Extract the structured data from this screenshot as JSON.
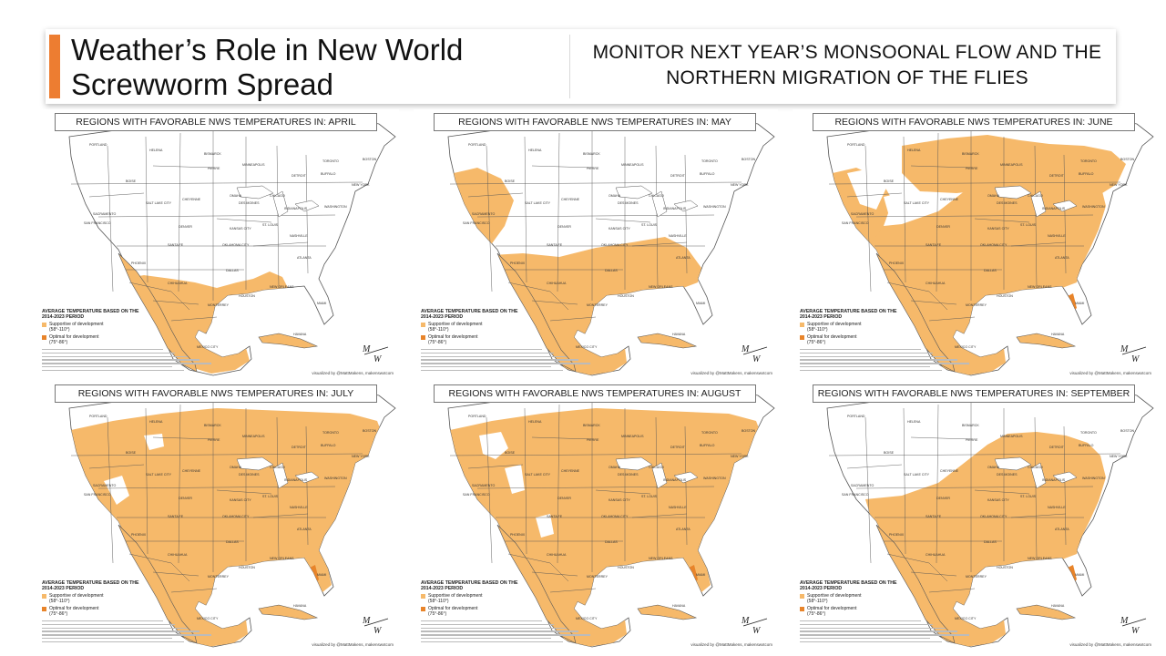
{
  "header": {
    "title": "Weather’s Role in New World Screwworm Spread",
    "subtitle": "MONITOR NEXT YEAR’S MONSOONAL FLOW AND THE NORTHERN MIGRATION OF THE FLIES",
    "accent_color": "#ed7d31"
  },
  "colors": {
    "supportive": "#f6b96a",
    "optimal": "#e8842a",
    "land": "#ffffff",
    "border": "#555555",
    "water": "#ffffff"
  },
  "legend": {
    "title": "AVERAGE TEMPERATURE BASED ON THE 2014-2023 PERIOD",
    "supportive_label": "Supportive of development",
    "supportive_range": "(58°-110°)",
    "optimal_label": "Optimal for development",
    "optimal_range": "(75°-86°)"
  },
  "credit": "visualized by @MattMakens, makenswxtcom",
  "logo_text": "Makens Weather",
  "panels": [
    {
      "title": "REGIONS WITH FAVORABLE NWS TEMPERATURES IN: APRIL",
      "month": "APRIL",
      "coverage_level": 1
    },
    {
      "title": "REGIONS WITH FAVORABLE NWS TEMPERATURES IN: MAY",
      "month": "MAY",
      "coverage_level": 2
    },
    {
      "title": "REGIONS WITH FAVORABLE NWS TEMPERATURES IN: JUNE",
      "month": "JUNE",
      "coverage_level": 4
    },
    {
      "title": "REGIONS WITH FAVORABLE NWS TEMPERATURES IN: JULY",
      "month": "JULY",
      "coverage_level": 6
    },
    {
      "title": "REGIONS WITH FAVORABLE NWS TEMPERATURES IN: AUGUST",
      "month": "AUGUST",
      "coverage_level": 5
    },
    {
      "title": "REGIONS WITH FAVORABLE NWS TEMPERATURES IN: SEPTEMBER",
      "month": "SEPTEMBER",
      "coverage_level": 3
    }
  ],
  "cities": [
    "PORTLAND",
    "WINNIPEG",
    "HELENA",
    "BISMARCK",
    "BOISE",
    "PIERRE",
    "MINNEAPOLIS",
    "TORONTO",
    "DETROIT",
    "BUFFALO",
    "BOSTON",
    "SALT LAKE CITY",
    "CHEYENNE",
    "OMAHA",
    "DES MOINES",
    "CHICAGO",
    "INDIANAPOLIS",
    "NEW YORK",
    "SACRAMENTO",
    "SAN FRANCISCO",
    "DENVER",
    "WASHINGTON",
    "KANSAS CITY",
    "ST. LOUIS",
    "NASHVILLE",
    "SANTA FE",
    "OKLAHOMA CITY",
    "ATLANTA",
    "PHOENIX",
    "DALLAS",
    "NEW ORLEANS",
    "HOUSTON",
    "CHIHUAHUA",
    "MONTERREY",
    "MIAMI",
    "HAVANA",
    "MEXICO CITY"
  ]
}
